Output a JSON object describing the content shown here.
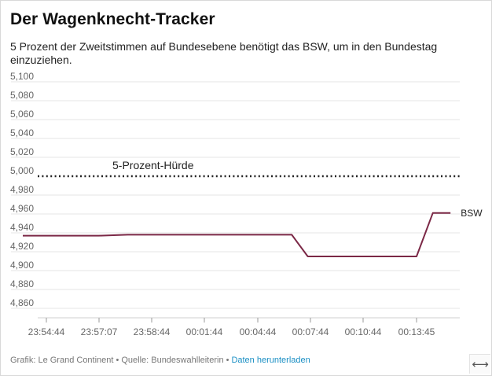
{
  "header": {
    "title": "Der Wagenknecht-Tracker",
    "subtitle": "5 Prozent der Zweitstimmen auf Bundesebene benötigt das BSW, um in den Bundestag einzuziehen."
  },
  "footer": {
    "credit": "Grafik: Le Grand Continent",
    "source": "Quelle: Bundeswahlleiterin",
    "download_label": "Daten herunterladen"
  },
  "icons": {
    "expand": "expand-horizontal-icon"
  },
  "colors": {
    "series": "#7b2846",
    "threshold": "#222222",
    "grid": "#e6e6e6",
    "tick": "#666666"
  },
  "chart_data": {
    "type": "line",
    "x_ticks": [
      "23:54:44",
      "23:57:07",
      "23:58:44",
      "00:01:44",
      "00:04:44",
      "00:07:44",
      "00:10:44",
      "00:13:45"
    ],
    "y_ticks": [
      "5,100",
      "5,080",
      "5,060",
      "5,040",
      "5,020",
      "5,000",
      "4,980",
      "4,960",
      "4,940",
      "4,920",
      "4,900",
      "4,880",
      "4,860"
    ],
    "ylim": [
      4.85,
      5.1
    ],
    "grid": true,
    "series": [
      {
        "name": "BSW",
        "points": [
          {
            "x": "23:53:40",
            "y": 4.937
          },
          {
            "x": "23:57:07",
            "y": 4.937
          },
          {
            "x": "23:58:00",
            "y": 4.938
          },
          {
            "x": "00:06:40",
            "y": 4.938
          },
          {
            "x": "00:07:35",
            "y": 4.915
          },
          {
            "x": "00:13:45",
            "y": 4.915
          },
          {
            "x": "00:14:40",
            "y": 4.961
          },
          {
            "x": "00:15:40",
            "y": 4.961
          }
        ]
      }
    ],
    "threshold": {
      "value": 5.0,
      "label": "5-Prozent-Hürde"
    }
  }
}
